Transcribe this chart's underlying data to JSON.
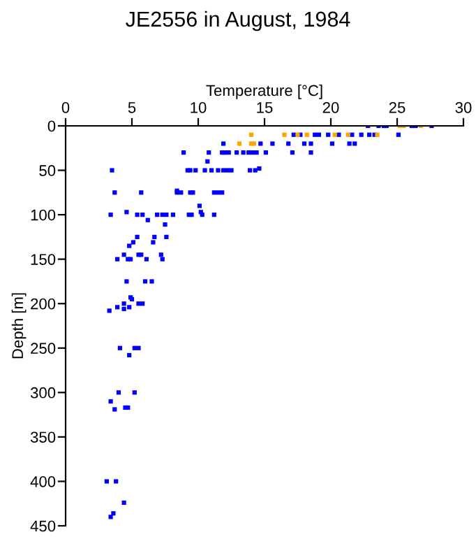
{
  "chart_data": {
    "type": "scatter",
    "title": "JE2556 in August, 1984",
    "xlabel": "Temperature [°C]",
    "ylabel": "Depth [m]",
    "xlim": [
      0,
      30
    ],
    "xticks": [
      0,
      5,
      10,
      15,
      20,
      25,
      30
    ],
    "ylim": [
      450,
      0
    ],
    "yticks": [
      0,
      50,
      100,
      150,
      200,
      250,
      300,
      350,
      400,
      450
    ],
    "grid": false,
    "legend": false,
    "marker": "square",
    "series": [
      {
        "color": "#0000ff",
        "x": [
          22.8,
          23.6,
          24.0,
          24.2,
          26.1,
          26.4,
          27.6,
          17.2,
          17.7,
          18.8,
          19.1,
          19.8,
          20.6,
          21.6,
          22.3,
          22.9,
          23.3,
          25.1,
          11.9,
          14.7,
          15.6,
          16.8,
          18.0,
          18.5,
          20.1,
          21.4,
          21.8,
          8.9,
          10.8,
          11.8,
          12.0,
          12.3,
          12.9,
          13.4,
          13.8,
          14.1,
          14.4,
          15.1,
          17.1,
          18.5,
          10.7,
          3.5,
          9.2,
          9.4,
          9.8,
          10.5,
          11.0,
          11.5,
          11.9,
          12.2,
          12.5,
          13.9,
          14.3,
          14.6,
          3.7,
          5.7,
          8.4,
          8.7,
          9.4,
          9.6,
          11.2,
          11.5,
          11.8,
          8.4,
          10.1,
          4.6,
          10.2,
          3.4,
          5.4,
          5.8,
          6.9,
          7.3,
          7.6,
          8.1,
          9.3,
          9.5,
          10.3,
          11.2,
          6.2,
          7.5,
          5.4,
          6.7,
          7.6,
          5.1,
          6.6,
          4.8,
          4.4,
          5.5,
          5.7,
          7.2,
          3.9,
          4.7,
          4.9,
          6.1,
          7.3,
          4.6,
          6.0,
          6.5,
          4.9,
          5.0,
          4.4,
          5.5,
          5.8,
          3.9,
          4.8,
          4.4,
          3.3,
          4.1,
          5.2,
          5.5,
          4.8,
          4.0,
          5.2,
          3.4,
          4.5,
          4.7,
          3.7,
          3.1,
          3.8,
          4.4,
          3.6,
          3.4
        ],
        "values": [
          0,
          0,
          0,
          0,
          0,
          0,
          0,
          10,
          10,
          10,
          10,
          10,
          10,
          10,
          10,
          10,
          10,
          10,
          20,
          20,
          20,
          20,
          20,
          20,
          20,
          20,
          20,
          30,
          30,
          30,
          30,
          30,
          30,
          30,
          30,
          30,
          30,
          30,
          30,
          30,
          40,
          50,
          50,
          50,
          50,
          50,
          50,
          50,
          50,
          50,
          50,
          50,
          50,
          48,
          75,
          75,
          75,
          75,
          75,
          75,
          75,
          75,
          75,
          73,
          90,
          97,
          97,
          100,
          100,
          100,
          100,
          100,
          100,
          100,
          100,
          100,
          100,
          100,
          106,
          111,
          125,
          125,
          125,
          131,
          131,
          135,
          145,
          145,
          145,
          145,
          150,
          150,
          150,
          150,
          150,
          175,
          175,
          175,
          193,
          195,
          200,
          200,
          200,
          204,
          204,
          206,
          208,
          250,
          250,
          250,
          258,
          300,
          300,
          310,
          317,
          317,
          319,
          400,
          400,
          424,
          436,
          440
        ]
      },
      {
        "color": "#ffa500",
        "x": [
          25.2,
          25.5,
          26.8,
          14.0,
          16.5,
          17.5,
          18.2,
          20.3,
          21.3,
          23.5,
          13.1,
          14.0,
          14.2
        ],
        "values": [
          0,
          0,
          0,
          10,
          10,
          10,
          10,
          10,
          10,
          10,
          20,
          20,
          20
        ]
      }
    ]
  }
}
